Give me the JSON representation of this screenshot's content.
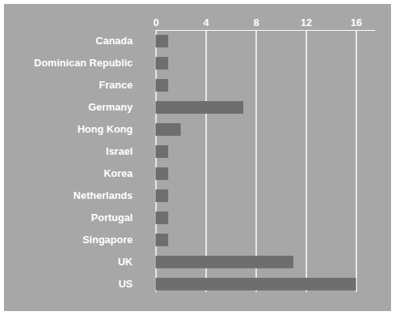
{
  "chart_data": {
    "type": "bar",
    "orientation": "horizontal",
    "categories": [
      "Canada",
      "Dominican Republic",
      "France",
      "Germany",
      "Hong Kong",
      "Israel",
      "Korea",
      "Netherlands",
      "Portugal",
      "Singapore",
      "UK",
      "US"
    ],
    "values": [
      1,
      1,
      1,
      7,
      2,
      1,
      1,
      1,
      1,
      1,
      11,
      16
    ],
    "color": "#6e6e6e",
    "xlim": [
      0,
      17.5
    ],
    "xticks": [
      0,
      4,
      8,
      12,
      16
    ],
    "grid": true
  }
}
